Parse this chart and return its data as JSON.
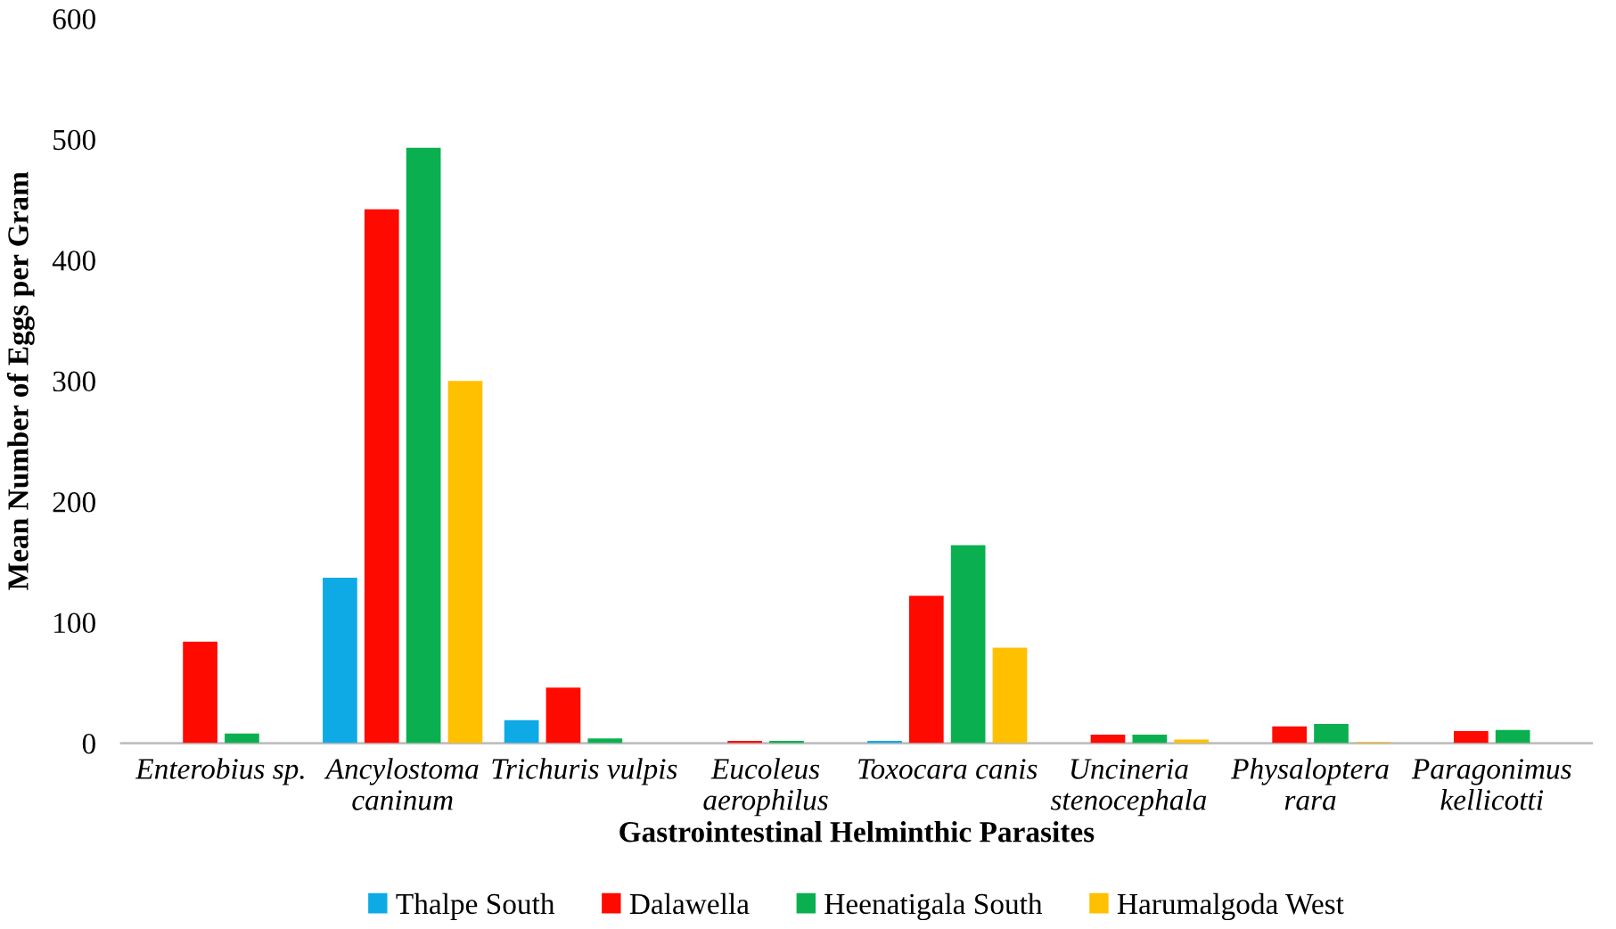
{
  "chart_data": {
    "type": "bar",
    "categories": [
      "Enterobius sp.",
      "Ancylostoma\ncaninum",
      "Trichuris vulpis",
      "Eucoleus\naerophilus",
      "Toxocara canis",
      "Uncineria\nstenocephala",
      "Physaloptera\nrara",
      "Paragonimus\nkellicotti"
    ],
    "series": [
      {
        "name": "Thalpe South",
        "color": "#0eaae6",
        "values": [
          0,
          137,
          19,
          0,
          2,
          0,
          0,
          0
        ]
      },
      {
        "name": "Dalawella",
        "color": "#ff0a00",
        "values": [
          84,
          442,
          46,
          2,
          122,
          7,
          14,
          10
        ]
      },
      {
        "name": "Heenatigala South",
        "color": "#0ab050",
        "values": [
          8,
          493,
          4,
          2,
          164,
          7,
          16,
          11
        ]
      },
      {
        "name": "Harumalgoda West",
        "color": "#ffc000",
        "values": [
          0,
          300,
          0,
          0,
          79,
          3,
          1,
          0
        ]
      }
    ],
    "xlabel": "Gastrointestinal Helminthic Parasites",
    "ylabel": "Mean Number of Eggs per Gram",
    "ylim": [
      0,
      600
    ],
    "yticks": [
      0,
      100,
      200,
      300,
      400,
      500,
      600
    ],
    "grid": false,
    "legend": "bottom"
  }
}
